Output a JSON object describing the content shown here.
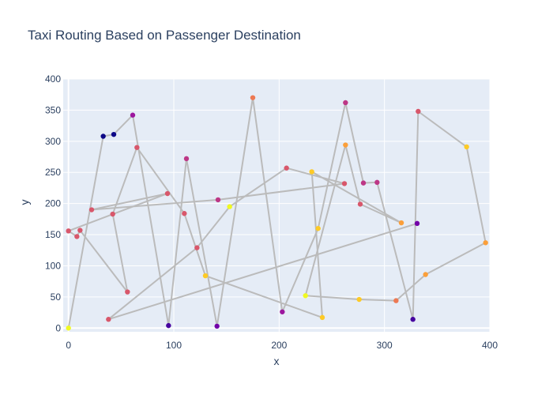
{
  "chart_data": {
    "type": "line",
    "title": "Taxi Routing Based on Passenger Destination",
    "xlabel": "x",
    "ylabel": "y",
    "xlim": [
      -5,
      400
    ],
    "ylim": [
      -6,
      400
    ],
    "x_ticks": [
      0,
      100,
      200,
      300,
      400
    ],
    "y_ticks": [
      0,
      50,
      100,
      150,
      200,
      250,
      300,
      350,
      400
    ],
    "grid": true,
    "line_color": "#bbbbbb",
    "colorscale": [
      "#0d0887",
      "#46039f",
      "#7201a8",
      "#9c179e",
      "#bd3786",
      "#d8576b",
      "#ed7953",
      "#fb9f3a",
      "#fdca26",
      "#f0f921"
    ],
    "series": [
      {
        "name": "route",
        "x": [
          0,
          33,
          43,
          61,
          95,
          112,
          141,
          175,
          203,
          237,
          263,
          280,
          293,
          327,
          332,
          378,
          396,
          339,
          311,
          276,
          225,
          263,
          277,
          316,
          231,
          241,
          130,
          110,
          65,
          42,
          56,
          11,
          8,
          0,
          94,
          22,
          142,
          262,
          207,
          153,
          122,
          38,
          331
        ],
        "y": [
          0,
          308,
          311,
          342,
          4,
          272,
          3,
          370,
          26,
          160,
          362,
          233,
          234,
          14,
          348,
          291,
          137,
          86,
          44,
          46,
          52,
          294,
          199,
          169,
          251,
          17,
          84,
          184,
          290,
          183,
          58,
          157,
          147,
          156,
          216,
          190,
          206,
          232,
          257,
          195,
          129,
          14,
          168
        ],
        "color_values": [
          0.95,
          0.0,
          0.05,
          0.3,
          0.1,
          0.4,
          0.2,
          0.7,
          0.3,
          0.9,
          0.45,
          0.4,
          0.45,
          0.1,
          0.5,
          0.85,
          0.75,
          0.75,
          0.65,
          0.9,
          0.95,
          0.8,
          0.55,
          0.75,
          0.85,
          0.85,
          0.9,
          0.55,
          0.55,
          0.6,
          0.55,
          0.55,
          0.5,
          0.6,
          0.5,
          0.5,
          0.4,
          0.5,
          0.6,
          0.95,
          0.6,
          0.55,
          0.2
        ]
      }
    ]
  }
}
